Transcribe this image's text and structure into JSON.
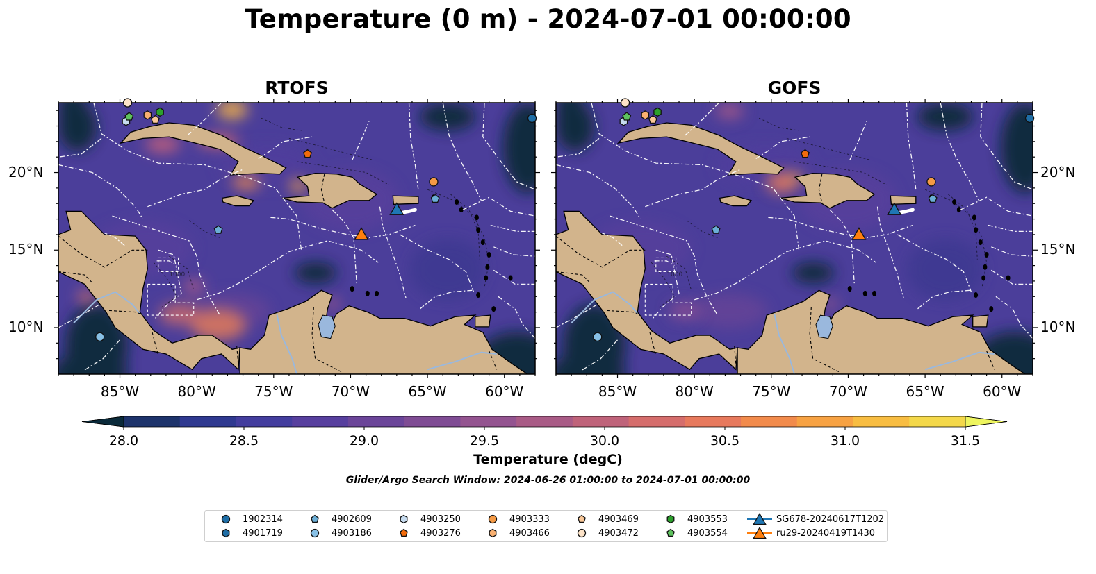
{
  "title": "Temperature (0 m) - 2024-07-01 00:00:00",
  "panels": [
    {
      "title": "RTOFS"
    },
    {
      "title": "GOFS"
    }
  ],
  "axes": {
    "longitude_ticks": [
      "85°W",
      "80°W",
      "75°W",
      "70°W",
      "65°W",
      "60°W"
    ],
    "latitude_ticks": [
      "20°N",
      "15°N",
      "10°N"
    ],
    "lon_range": [
      -89,
      -58
    ],
    "lat_range": [
      7,
      24.5
    ],
    "lon_tick_values": [
      -85,
      -80,
      -75,
      -70,
      -65,
      -60
    ],
    "lat_tick_values": [
      20,
      15,
      10
    ]
  },
  "colorbar": {
    "label": "Temperature (degC)",
    "ticks": [
      "28.0",
      "28.5",
      "29.0",
      "29.5",
      "30.0",
      "30.5",
      "31.0",
      "31.5"
    ],
    "range": [
      28.0,
      31.5
    ],
    "step": 0.25,
    "colors": [
      "#0a2a3a",
      "#1d336b",
      "#2f3990",
      "#433d9e",
      "#573f9e",
      "#6b4599",
      "#7f4c94",
      "#945490",
      "#a95b86",
      "#bf637a",
      "#d56d6c",
      "#e7795d",
      "#f28b4c",
      "#f7a243",
      "#f8bd42",
      "#f4d84a",
      "#eef55f"
    ]
  },
  "search_window": "Glider/Argo Search Window: 2024-06-26 01:00:00 to 2024-07-01 00:00:00",
  "colors": {
    "land": "#d2b48c",
    "ocean_dark": "#0a2a3a",
    "lake": "#9ab8dd",
    "eez_lines": "#ffffff"
  },
  "legend": [
    {
      "label": "1902314",
      "marker": "circle",
      "color": "#1f6ea6"
    },
    {
      "label": "4901719",
      "marker": "hexagon",
      "color": "#1f6ea6"
    },
    {
      "label": "4902609",
      "marker": "pentagon",
      "color": "#6baed6"
    },
    {
      "label": "4903186",
      "marker": "circle",
      "color": "#87c0e6"
    },
    {
      "label": "4903250",
      "marker": "hexagon",
      "color": "#c6dbef"
    },
    {
      "label": "4903276",
      "marker": "pentagon",
      "color": "#f26b0b"
    },
    {
      "label": "4903333",
      "marker": "circle",
      "color": "#f59a45"
    },
    {
      "label": "4903466",
      "marker": "hexagon",
      "color": "#f9b070"
    },
    {
      "label": "4903469",
      "marker": "pentagon",
      "color": "#fac898"
    },
    {
      "label": "4903472",
      "marker": "circle",
      "color": "#fde3c8"
    },
    {
      "label": "4903553",
      "marker": "hexagon",
      "color": "#2ca02c"
    },
    {
      "label": "4903554",
      "marker": "pentagon",
      "color": "#5ec25e"
    },
    {
      "label": "SG678-20240617T1202",
      "marker": "triangle-line",
      "color": "#1f77b4"
    },
    {
      "label": "ru29-20240419T1430",
      "marker": "triangle-line",
      "color": "#ff7f0e"
    }
  ],
  "observations": [
    {
      "id": "1902314",
      "lon": -58.2,
      "lat": 23.5
    },
    {
      "id": "4903186",
      "lon": -86.3,
      "lat": 9.4
    },
    {
      "id": "4902609",
      "lon": -78.6,
      "lat": 16.3
    },
    {
      "id": "4902609",
      "lon": -64.5,
      "lat": 18.3
    },
    {
      "id": "4903333",
      "lon": -64.6,
      "lat": 19.4
    },
    {
      "id": "4903276",
      "lon": -72.8,
      "lat": 21.2
    },
    {
      "id": "4903250",
      "lon": -84.6,
      "lat": 23.3
    },
    {
      "id": "4903554",
      "lon": -84.4,
      "lat": 23.6
    },
    {
      "id": "4903553",
      "lon": -82.4,
      "lat": 23.9
    },
    {
      "id": "4903466",
      "lon": -83.2,
      "lat": 23.7
    },
    {
      "id": "4903469",
      "lon": -82.7,
      "lat": 23.4
    },
    {
      "id": "4903472",
      "lon": -84.5,
      "lat": 24.5
    },
    {
      "id": "SG678-20240617T1202",
      "lon": -67.0,
      "lat": 17.6
    },
    {
      "id": "ru29-20240419T1430",
      "lon": -69.3,
      "lat": 16.0
    }
  ]
}
